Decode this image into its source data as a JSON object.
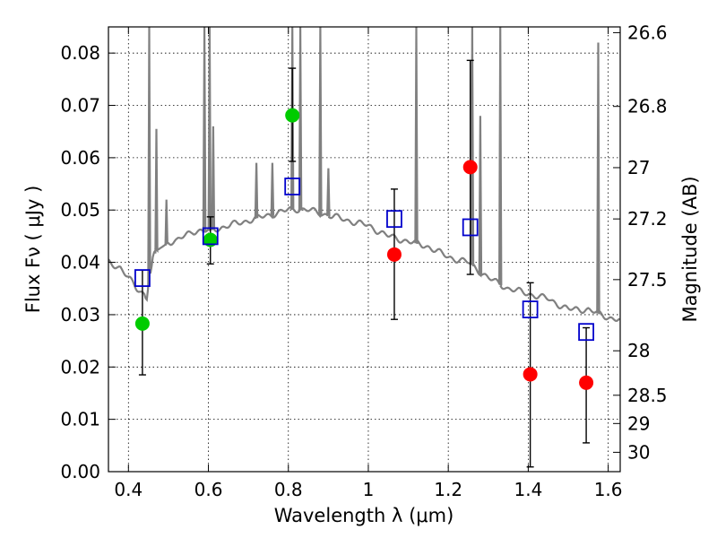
{
  "chart_data": {
    "type": "scatter",
    "xlabel": "Wavelength  λ (μm)",
    "ylabel": "Flux  Fν  ( μJy )",
    "y2label": "Magnitude (AB)",
    "xlim": [
      0.35,
      1.63
    ],
    "ylim": [
      0.0,
      0.085
    ],
    "grid": true,
    "x_ticks": [
      0.4,
      0.6,
      0.8,
      1.0,
      1.2,
      1.4,
      1.6
    ],
    "x_tick_labels": [
      "0.4",
      "0.6",
      "0.8",
      "1",
      "1.2",
      "1.4",
      "1.6"
    ],
    "y_ticks": [
      0.0,
      0.01,
      0.02,
      0.03,
      0.04,
      0.05,
      0.06,
      0.07,
      0.08
    ],
    "y_tick_labels": [
      "0.00",
      "0.01",
      "0.02",
      "0.03",
      "0.04",
      "0.05",
      "0.06",
      "0.07",
      "0.08"
    ],
    "y2_ticks": [
      {
        "label": "26.6",
        "flux": 0.0839
      },
      {
        "label": "26.8",
        "flux": 0.0698
      },
      {
        "label": "27",
        "flux": 0.0581
      },
      {
        "label": "27.2",
        "flux": 0.0483
      },
      {
        "label": "27.5",
        "flux": 0.0367
      },
      {
        "label": "28",
        "flux": 0.0231
      },
      {
        "label": "28.5",
        "flux": 0.0146
      },
      {
        "label": "29",
        "flux": 0.0092
      },
      {
        "label": "30",
        "flux": 0.0037
      }
    ],
    "colors": {
      "detection_green": "#00cc00",
      "detection_red": "#ff0000",
      "model_box": "#0000cc",
      "model_spectrum": "#808080",
      "errorbar": "#000000"
    },
    "series": [
      {
        "type": "spectrum",
        "x": [
          0.35,
          0.38,
          0.4,
          0.42,
          0.44,
          0.445,
          0.448,
          0.452,
          0.455,
          0.458,
          0.462,
          0.47,
          0.48,
          0.49,
          0.5,
          0.52,
          0.54,
          0.56,
          0.58,
          0.6,
          0.65,
          0.7,
          0.75,
          0.8,
          0.82,
          0.85,
          0.9,
          0.95,
          1.0,
          1.05,
          1.1,
          1.15,
          1.2,
          1.25,
          1.3,
          1.35,
          1.4,
          1.45,
          1.5,
          1.55,
          1.58,
          1.6,
          1.63
        ],
        "y": [
          0.04,
          0.039,
          0.037,
          0.035,
          0.034,
          0.033,
          0.034,
          0.04,
          0.038,
          0.039,
          0.041,
          0.042,
          0.043,
          0.043,
          0.044,
          0.044,
          0.045,
          0.046,
          0.046,
          0.046,
          0.047,
          0.048,
          0.049,
          0.05,
          0.0502,
          0.05,
          0.049,
          0.048,
          0.047,
          0.045,
          0.044,
          0.043,
          0.041,
          0.04,
          0.037,
          0.035,
          0.034,
          0.033,
          0.031,
          0.031,
          0.03,
          0.0295,
          0.029
        ],
        "lines": [
          {
            "x": 0.452,
            "peak": 0.085
          },
          {
            "x": 0.47,
            "peak": 0.0655
          },
          {
            "x": 0.495,
            "peak": 0.052
          },
          {
            "x": 0.59,
            "peak": 0.085
          },
          {
            "x": 0.603,
            "peak": 0.085
          },
          {
            "x": 0.612,
            "peak": 0.066
          },
          {
            "x": 0.72,
            "peak": 0.059
          },
          {
            "x": 0.76,
            "peak": 0.059
          },
          {
            "x": 0.81,
            "peak": 0.085
          },
          {
            "x": 0.83,
            "peak": 0.085
          },
          {
            "x": 0.88,
            "peak": 0.085
          },
          {
            "x": 0.9,
            "peak": 0.058
          },
          {
            "x": 1.12,
            "peak": 0.085
          },
          {
            "x": 1.26,
            "peak": 0.085
          },
          {
            "x": 1.28,
            "peak": 0.068
          },
          {
            "x": 1.33,
            "peak": 0.085
          },
          {
            "x": 1.575,
            "peak": 0.082
          }
        ]
      },
      {
        "type": "model_photometry",
        "x": [
          0.435,
          0.605,
          0.81,
          1.065,
          1.255,
          1.405,
          1.545
        ],
        "y": [
          0.037,
          0.045,
          0.0545,
          0.0483,
          0.0467,
          0.031,
          0.0267
        ]
      },
      {
        "type": "detections",
        "points": [
          {
            "x": 0.435,
            "y": 0.0283,
            "err_low": 0.0185,
            "err_high": 0.0385,
            "color": "green"
          },
          {
            "x": 0.605,
            "y": 0.0443,
            "err_low": 0.0397,
            "err_high": 0.0487,
            "color": "green"
          },
          {
            "x": 0.81,
            "y": 0.0681,
            "err_low": 0.0593,
            "err_high": 0.0771,
            "color": "green"
          },
          {
            "x": 1.065,
            "y": 0.0415,
            "err_low": 0.0291,
            "err_high": 0.054,
            "color": "red"
          },
          {
            "x": 1.255,
            "y": 0.0582,
            "err_low": 0.0377,
            "err_high": 0.0786,
            "color": "red"
          },
          {
            "x": 1.405,
            "y": 0.0186,
            "err_low": 0.0009,
            "err_high": 0.0361,
            "color": "red"
          },
          {
            "x": 1.545,
            "y": 0.017,
            "err_low": 0.0055,
            "err_high": 0.0275,
            "color": "red"
          }
        ]
      }
    ]
  }
}
